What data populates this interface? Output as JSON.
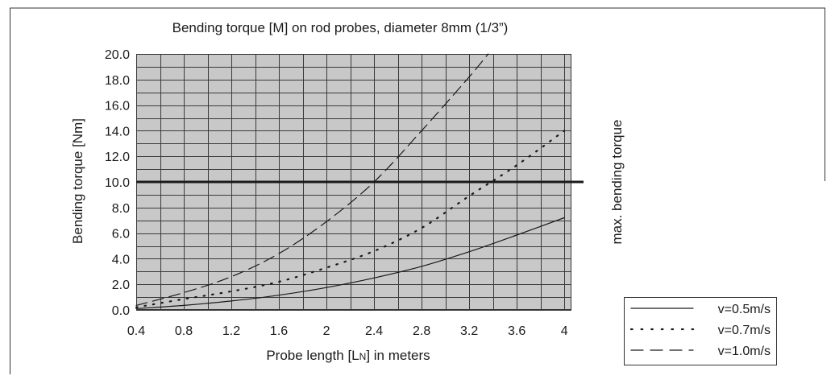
{
  "chart_data": {
    "type": "line",
    "title": "Bending torque [M] on rod probes, diameter 8mm (1/3”)",
    "ylabel": "Bending torque [Nm]",
    "xlabel_parts": [
      "Probe length [L",
      "N",
      "] in meters"
    ],
    "xlim": [
      0.4,
      4.06
    ],
    "ylim": [
      0,
      20
    ],
    "xticks": [
      "0.4",
      "0.8",
      "1.2",
      "1.6",
      "2",
      "2.4",
      "2.8",
      "3.2",
      "3.6",
      "4"
    ],
    "yticks": [
      "0.0",
      "2.0",
      "4.0",
      "6.0",
      "8.0",
      "10.0",
      "12.0",
      "14.0",
      "16.0",
      "18.0",
      "20.0"
    ],
    "grid": true,
    "plot_background": "#c8c8c8",
    "legend_position": "bottom-right",
    "reference_line": {
      "y": 10,
      "label": "max. bending torque"
    },
    "series": [
      {
        "name": "v=0.5m/s",
        "style": "solid",
        "x": [
          0.4,
          0.8,
          1.2,
          1.6,
          2.0,
          2.4,
          2.8,
          3.2,
          3.6,
          4.0
        ],
        "y": [
          0.1,
          0.35,
          0.7,
          1.15,
          1.75,
          2.5,
          3.4,
          4.55,
          5.85,
          7.2
        ]
      },
      {
        "name": "v=0.7m/s",
        "style": "dotted",
        "x": [
          0.4,
          0.8,
          1.2,
          1.6,
          2.0,
          2.4,
          2.8,
          3.2,
          3.6,
          4.0
        ],
        "y": [
          0.2,
          0.85,
          1.45,
          2.2,
          3.3,
          4.6,
          6.4,
          8.9,
          11.3,
          14.0
        ]
      },
      {
        "name": "v=1.0m/s",
        "style": "dashed",
        "x": [
          0.4,
          0.8,
          1.2,
          1.6,
          2.0,
          2.4,
          2.8,
          3.2,
          3.36
        ],
        "y": [
          0.35,
          1.35,
          2.6,
          4.4,
          6.9,
          10.0,
          14.0,
          18.2,
          20.0
        ]
      }
    ]
  }
}
